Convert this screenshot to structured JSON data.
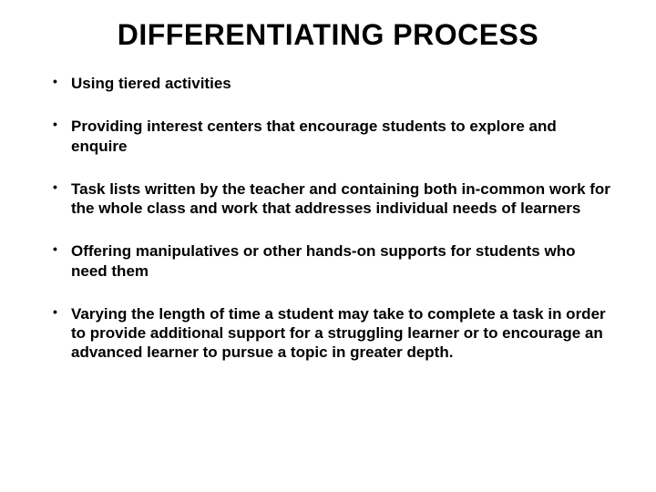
{
  "title": "DIFFERENTIATING PROCESS",
  "bullets": [
    "Using tiered activities",
    "Providing interest centers that encourage students to explore and enquire",
    "Task lists written by the teacher and containing both in-common work for the whole class and work that addresses individual needs of learners",
    "Offering manipulatives or other hands-on supports for students who need them",
    "Varying the length of time a student may take to complete a task in order to provide additional support for a struggling learner or to encourage an advanced learner to pursue a topic in greater depth."
  ],
  "colors": {
    "background": "#ffffff",
    "text": "#000000"
  },
  "typography": {
    "title_fontsize": 32,
    "title_weight": 800,
    "body_fontsize": 17,
    "body_weight": 700,
    "font_family": "Futura"
  }
}
